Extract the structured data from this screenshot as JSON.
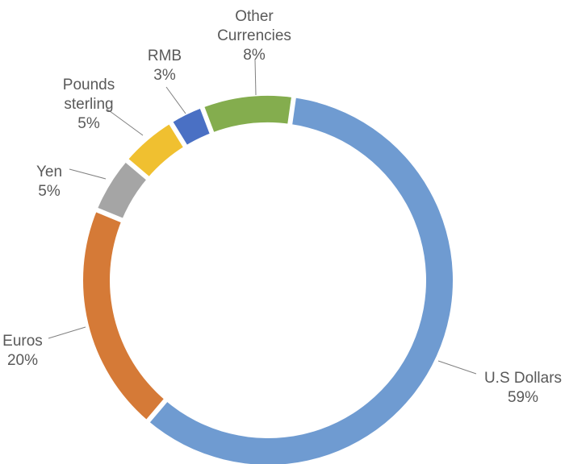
{
  "chart_data": {
    "type": "pie",
    "subtype": "donut",
    "title": "",
    "slices": [
      {
        "label": "U.S Dollars",
        "pct_label": "59%",
        "value": 59,
        "color": "#6f9bd1"
      },
      {
        "label": "Euros",
        "pct_label": "20%",
        "value": 20,
        "color": "#d57a37"
      },
      {
        "label": "Yen",
        "pct_label": "5%",
        "value": 5,
        "color": "#a5a5a5"
      },
      {
        "label": "Pounds sterling",
        "label_lines": [
          "Pounds",
          "sterling"
        ],
        "pct_label": "5%",
        "value": 5,
        "color": "#f0c030"
      },
      {
        "label": "RMB",
        "pct_label": "3%",
        "value": 3,
        "color": "#4a70c4"
      },
      {
        "label": "Other Currencies",
        "label_lines": [
          "Other",
          "Currencies"
        ],
        "pct_label": "8%",
        "value": 8,
        "color": "#84ad4e"
      }
    ],
    "legend": "none",
    "data_labels": "outside with leader lines"
  }
}
